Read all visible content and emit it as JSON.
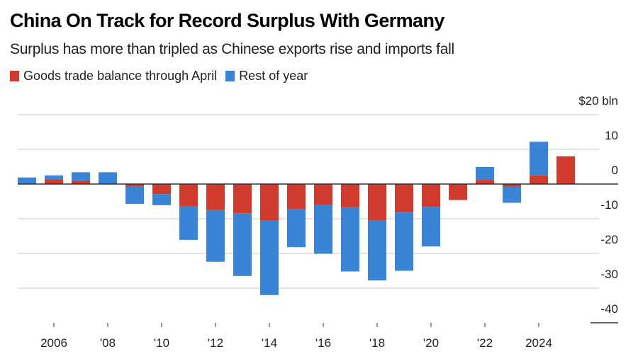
{
  "chart_data": {
    "type": "bar",
    "stacked": true,
    "title": "China On Track for Record Surplus With Germany",
    "subtitle": "Surplus has more than tripled as Chinese exports rise and imports fall",
    "ylabel": "$ bln",
    "y_unit_label": "$20 bln",
    "ylim": [
      -40,
      20
    ],
    "yticks": [
      20,
      10,
      0,
      -10,
      -20,
      -30,
      -40
    ],
    "ytick_labels": [
      "$20 bln",
      "10",
      "0",
      "-10",
      "-20",
      "-30",
      "-40"
    ],
    "grid": true,
    "legend_position": "top-left",
    "categories": [
      2005,
      2006,
      2007,
      2008,
      2009,
      2010,
      2011,
      2012,
      2013,
      2014,
      2015,
      2016,
      2017,
      2018,
      2019,
      2020,
      2021,
      2022,
      2023,
      2024,
      2025
    ],
    "xticks": [
      2006,
      2008,
      2010,
      2012,
      2014,
      2016,
      2018,
      2020,
      2022,
      2024
    ],
    "xtick_labels": [
      "2006",
      "'08",
      "'10",
      "'12",
      "'14",
      "'16",
      "'18",
      "'20",
      "'22",
      "2024"
    ],
    "series": [
      {
        "name": "Goods trade balance through April",
        "color": "#d03b2e",
        "values": [
          0,
          1.4,
          0.9,
          0,
          -0.7,
          -2.9,
          -6.5,
          -7.5,
          -8.4,
          -10.5,
          -7.3,
          -6.1,
          -6.7,
          -10.4,
          -8.2,
          -6.6,
          -4.6,
          1.2,
          -0.8,
          2.5,
          8.0
        ]
      },
      {
        "name": "Rest of year",
        "color": "#3a84d6",
        "values": [
          1.9,
          1.1,
          2.5,
          3.4,
          -5.0,
          -3.2,
          -9.6,
          -14.9,
          -18.1,
          -21.5,
          -10.9,
          -14.0,
          -18.5,
          -17.4,
          -16.8,
          -11.4,
          0,
          3.7,
          -4.6,
          9.7,
          0
        ]
      }
    ]
  }
}
